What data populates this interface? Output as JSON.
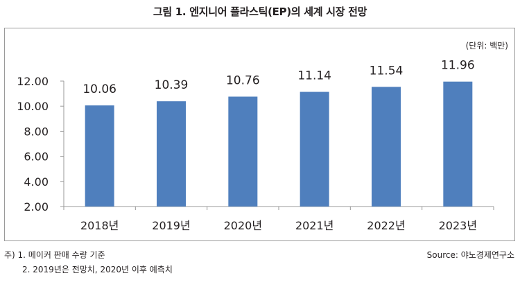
{
  "title": "그림 1. 엔지니어 플라스틱(EP)의 세계 시장 전망",
  "unit": "(단위: 백만)",
  "notes": [
    "주) 1. 메이커 판매 수량 기준",
    "2. 2019년은 전망치, 2020년 이후 예측치"
  ],
  "source": "Source: 야노경제연구소",
  "colors": {
    "bar": "#4f7fbd",
    "axis": "#9a9a9a"
  },
  "chart_data": {
    "type": "bar",
    "title": "그림 1. 엔지니어 플라스틱(EP)의 세계 시장 전망",
    "categories": [
      "2018년",
      "2019년",
      "2020년",
      "2021년",
      "2022년",
      "2023년"
    ],
    "values": [
      10.06,
      10.39,
      10.76,
      11.14,
      11.54,
      11.96
    ],
    "value_labels": [
      "10.06",
      "10.39",
      "10.76",
      "11.14",
      "11.54",
      "11.96"
    ],
    "ylim": [
      2.0,
      12.0
    ],
    "yticks": [
      2.0,
      4.0,
      6.0,
      8.0,
      10.0,
      12.0
    ],
    "ytick_labels": [
      "2.00",
      "4.00",
      "6.00",
      "8.00",
      "10.00",
      "12.00"
    ],
    "xlabel": "",
    "ylabel": "",
    "grid": false,
    "legend": "none"
  }
}
